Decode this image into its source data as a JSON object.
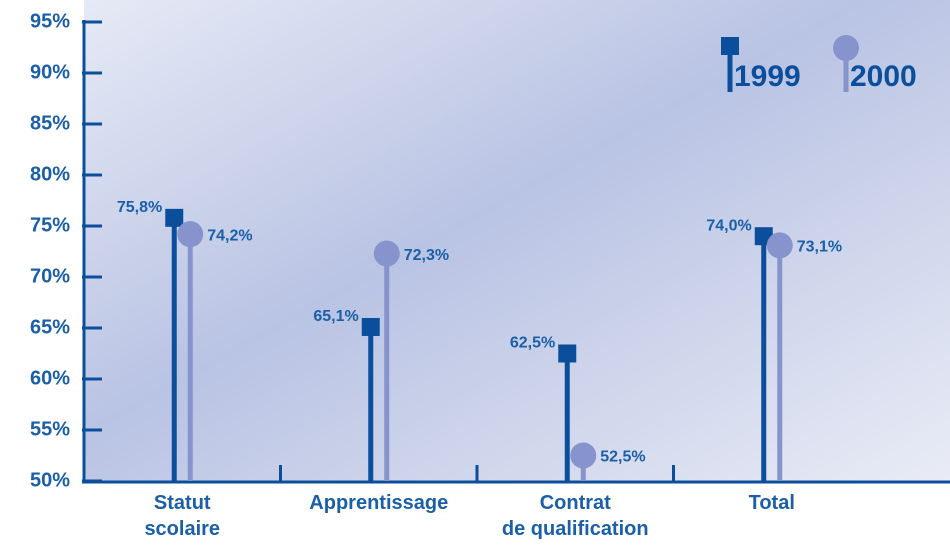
{
  "chart_data": {
    "type": "lollipop",
    "categories": [
      "Statut\nscolaire",
      "Apprentissage",
      "Contrat\nde qualification",
      "Total"
    ],
    "series": [
      {
        "name": "1999",
        "color": "#0b4f9c",
        "values": [
          75.8,
          65.1,
          62.5,
          74.0
        ],
        "value_labels": [
          "75,8%",
          "65,1%",
          "62,5%",
          "74,0%"
        ]
      },
      {
        "name": "2000",
        "color": "#8693cc",
        "values": [
          74.2,
          72.3,
          52.5,
          73.1
        ],
        "value_labels": [
          "74,2%",
          "72,3%",
          "52,5%",
          "73,1%"
        ]
      }
    ],
    "ylim": [
      50,
      95
    ],
    "yticks": [
      {
        "value": 50,
        "label": "50%"
      },
      {
        "value": 55,
        "label": "55%"
      },
      {
        "value": 60,
        "label": "60%"
      },
      {
        "value": 65,
        "label": "65%"
      },
      {
        "value": 70,
        "label": "70%"
      },
      {
        "value": 75,
        "label": "75%"
      },
      {
        "value": 80,
        "label": "80%"
      },
      {
        "value": 85,
        "label": "85%"
      },
      {
        "value": 90,
        "label": "90%"
      },
      {
        "value": 95,
        "label": "95%"
      }
    ],
    "legend": "upper right"
  }
}
